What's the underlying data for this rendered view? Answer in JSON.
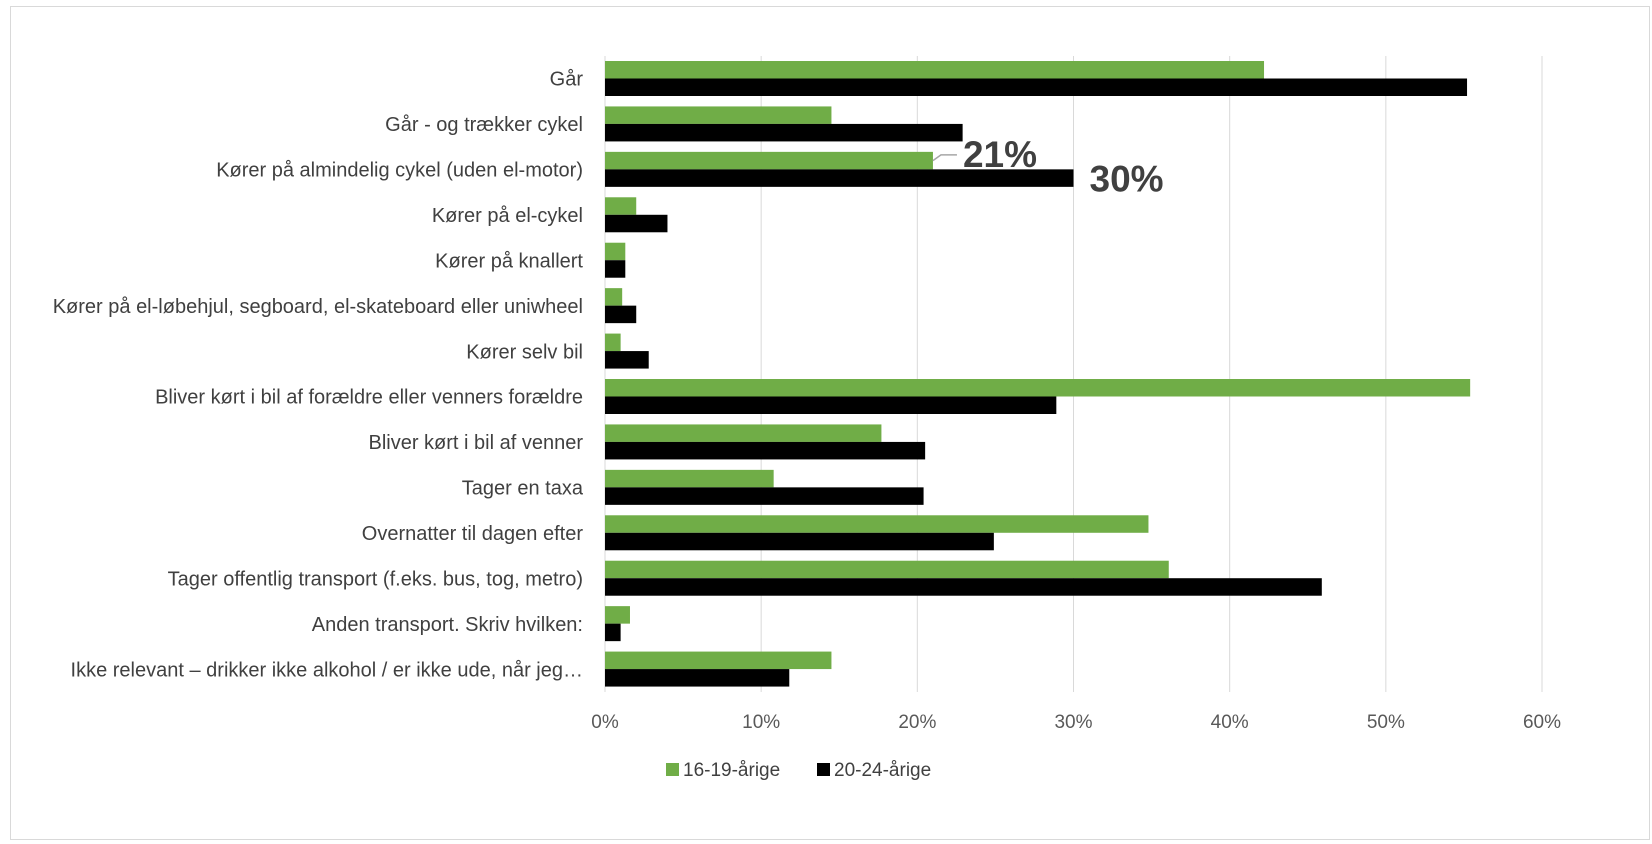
{
  "chart_data": {
    "type": "bar",
    "orientation": "horizontal",
    "categories": [
      "Går",
      "Går - og trækker cykel",
      "Kører på almindelig cykel (uden el-motor)",
      "Kører på el-cykel",
      "Kører på knallert",
      "Kører på el-løbehjul, segboard, el-skateboard eller uniwheel",
      "Kører selv bil",
      "Bliver kørt i bil af forældre eller venners forældre",
      "Bliver kørt i bil af venner",
      "Tager en taxa",
      "Overnatter til dagen efter",
      "Tager offentlig transport (f.eks. bus, tog, metro)",
      "Anden transport. Skriv hvilken:",
      "Ikke relevant – drikker ikke alkohol / er ikke ude,  når jeg…"
    ],
    "series": [
      {
        "name": "16-19-årige",
        "color": "#70ad47",
        "values": [
          42.2,
          14.5,
          21,
          2.0,
          1.3,
          1.1,
          1.0,
          55.4,
          17.7,
          10.8,
          34.8,
          36.1,
          1.6,
          14.5
        ]
      },
      {
        "name": "20-24-årige",
        "color": "#000000",
        "values": [
          55.2,
          22.9,
          30,
          4.0,
          1.3,
          2.0,
          2.8,
          28.9,
          20.5,
          20.4,
          24.9,
          45.9,
          1.0,
          11.8
        ]
      }
    ],
    "xlim": [
      0,
      60
    ],
    "x_ticks": [
      "0%",
      "10%",
      "20%",
      "30%",
      "40%",
      "50%",
      "60%"
    ],
    "grid": true,
    "legend_position": "bottom",
    "annotations": [
      {
        "category_index": 2,
        "series_index": 0,
        "text": "21%"
      },
      {
        "category_index": 2,
        "series_index": 1,
        "text": "30%"
      }
    ]
  }
}
